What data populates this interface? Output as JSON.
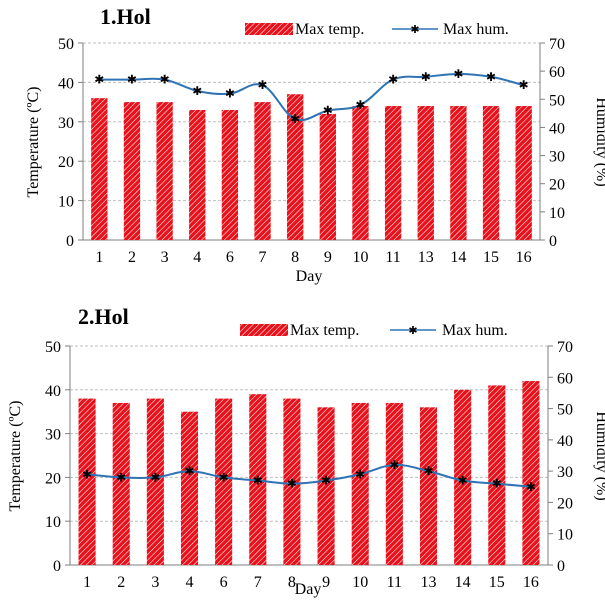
{
  "colors": {
    "bar": "#e8111b",
    "bar_hatch": "#ffffff",
    "line": "#2e74b5",
    "grid": "#bfbfbf",
    "axis": "#7f7f7f"
  },
  "chart_data": [
    {
      "type": "bar+line",
      "title": "1.Hol",
      "xlabel": "Day",
      "ylabel": "Temperature (ºC)",
      "y2label": "Humidity (%)",
      "categories": [
        "1",
        "2",
        "3",
        "4",
        "6",
        "7",
        "8",
        "9",
        "10",
        "11",
        "13",
        "14",
        "15",
        "16"
      ],
      "ylim": [
        0,
        50
      ],
      "y_ticks": [
        "0",
        "10",
        "20",
        "30",
        "40",
        "50"
      ],
      "y2lim": [
        0,
        70
      ],
      "y2_ticks": [
        "0",
        "10",
        "20",
        "30",
        "40",
        "50",
        "60",
        "70"
      ],
      "grid": true,
      "legend_position": "top-right",
      "series": [
        {
          "name": "Max temp.",
          "type": "bar",
          "axis": "left",
          "values": [
            36,
            35,
            35,
            33,
            33,
            35,
            37,
            32,
            34,
            34,
            34,
            34,
            34,
            34
          ]
        },
        {
          "name": "Max hum.",
          "type": "line",
          "axis": "right",
          "values": [
            57,
            57,
            57,
            53,
            52,
            55,
            43,
            46,
            48,
            57,
            58,
            59,
            58,
            55
          ]
        }
      ]
    },
    {
      "type": "bar+line",
      "title": "2.Hol",
      "xlabel": "Day",
      "ylabel": "Temperature (ºC)",
      "y2label": "Humidity (%)",
      "categories": [
        "1",
        "2",
        "3",
        "4",
        "6",
        "7",
        "8",
        "9",
        "10",
        "11",
        "13",
        "14",
        "15",
        "16"
      ],
      "ylim": [
        0,
        50
      ],
      "y_ticks": [
        "0",
        "10",
        "20",
        "30",
        "40",
        "50"
      ],
      "y2lim": [
        0,
        70
      ],
      "y2_ticks": [
        "0",
        "10",
        "20",
        "30",
        "40",
        "50",
        "60",
        "70"
      ],
      "grid": true,
      "legend_position": "top-right",
      "series": [
        {
          "name": "Max temp.",
          "type": "bar",
          "axis": "left",
          "values": [
            38,
            37,
            38,
            35,
            38,
            39,
            38,
            36,
            37,
            37,
            36,
            40,
            41,
            42
          ]
        },
        {
          "name": "Max hum.",
          "type": "line",
          "axis": "right",
          "values": [
            29,
            28,
            28,
            30,
            28,
            27,
            26,
            27,
            29,
            32,
            30,
            27,
            26,
            25
          ]
        }
      ]
    }
  ]
}
